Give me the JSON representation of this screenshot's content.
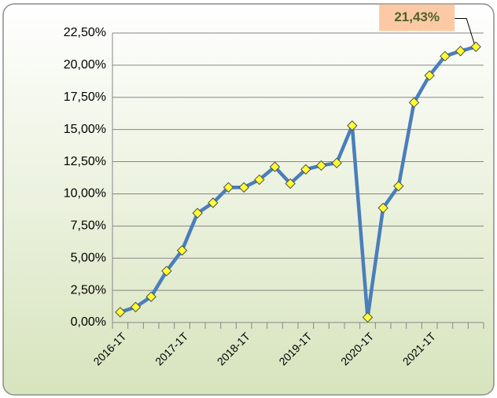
{
  "chart_data": {
    "type": "line",
    "categories": [
      "2016-1T",
      null,
      null,
      null,
      "2017-1T",
      null,
      null,
      null,
      "2018-1T",
      null,
      null,
      null,
      "2019-1T",
      null,
      null,
      null,
      "2020-1T",
      null,
      null,
      null,
      "2021-1T",
      null,
      null,
      null
    ],
    "series": [
      {
        "color": "#4a7ebb",
        "values": [
          0.8,
          1.2,
          2.0,
          4.0,
          5.6,
          8.5,
          9.3,
          10.5,
          10.5,
          11.1,
          12.1,
          10.8,
          11.9,
          12.2,
          12.4,
          15.3,
          0.4,
          8.9,
          10.6,
          17.1,
          19.2,
          20.7,
          21.1,
          21.43
        ],
        "value_labels": [
          null,
          null,
          null,
          null,
          null,
          null,
          null,
          null,
          null,
          null,
          null,
          null,
          null,
          null,
          null,
          null,
          null,
          null,
          null,
          null,
          null,
          null,
          null,
          "21,43%"
        ]
      }
    ],
    "ylim": [
      0,
      22.5
    ],
    "yticks": [
      {
        "value": 0,
        "label": "0,00%"
      },
      {
        "value": 2.5,
        "label": "2,50%"
      },
      {
        "value": 5,
        "label": "5,00%"
      },
      {
        "value": 7.5,
        "label": "7,50%"
      },
      {
        "value": 10,
        "label": "10,00%"
      },
      {
        "value": 12.5,
        "label": "12,50%"
      },
      {
        "value": 15,
        "label": "15,00%"
      },
      {
        "value": 17.5,
        "label": "17,50%"
      },
      {
        "value": 20,
        "label": "20,00%"
      },
      {
        "value": 22.5,
        "label": "22,50%"
      }
    ],
    "grid": true
  }
}
